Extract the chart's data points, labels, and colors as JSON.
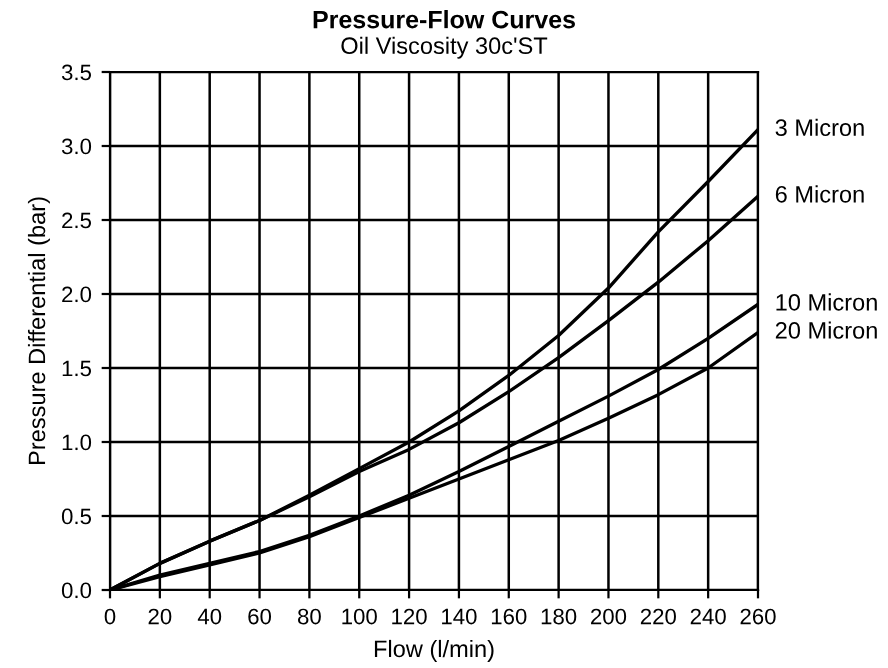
{
  "chart_data": {
    "type": "line",
    "title": "Pressure-Flow Curves",
    "subtitle": "Oil Viscosity 30c'ST",
    "xlabel": "Flow (l/min)",
    "ylabel": "Pressure Differential (bar)",
    "x": [
      0,
      20,
      40,
      60,
      80,
      100,
      120,
      140,
      160,
      180,
      200,
      220,
      240,
      260
    ],
    "series": [
      {
        "name": "3 Micron",
        "color": "#000000",
        "values": [
          0,
          0.18,
          0.33,
          0.47,
          0.64,
          0.82,
          1.0,
          1.21,
          1.45,
          1.72,
          2.04,
          2.42,
          2.76,
          3.11
        ]
      },
      {
        "name": "6 Micron",
        "color": "#000000",
        "values": [
          0,
          0.18,
          0.33,
          0.47,
          0.63,
          0.8,
          0.95,
          1.13,
          1.34,
          1.57,
          1.82,
          2.08,
          2.36,
          2.66
        ]
      },
      {
        "name": "10 Micron",
        "color": "#000000",
        "values": [
          0,
          0.1,
          0.18,
          0.26,
          0.37,
          0.5,
          0.64,
          0.8,
          0.97,
          1.14,
          1.31,
          1.49,
          1.7,
          1.93
        ]
      },
      {
        "name": "20 Micron",
        "color": "#000000",
        "values": [
          0,
          0.09,
          0.17,
          0.25,
          0.36,
          0.49,
          0.62,
          0.75,
          0.88,
          1.01,
          1.16,
          1.32,
          1.5,
          1.74
        ]
      }
    ],
    "xlim": [
      0,
      260
    ],
    "xticks": [
      0,
      20,
      40,
      60,
      80,
      100,
      120,
      140,
      160,
      180,
      200,
      220,
      240,
      260
    ],
    "ylim": [
      0,
      3.5
    ],
    "yticks": [
      {
        "value": 0,
        "label": "0.0"
      },
      {
        "value": 0.5,
        "label": "0.5"
      },
      {
        "value": 1,
        "label": "1.0"
      },
      {
        "value": 1.5,
        "label": "1.5"
      },
      {
        "value": 2,
        "label": "2.0"
      },
      {
        "value": 2.5,
        "label": "2.5"
      },
      {
        "value": 3,
        "label": "3.0"
      },
      {
        "value": 3.5,
        "label": "3.5"
      }
    ],
    "grid": true,
    "legend": false,
    "marker": "none",
    "line_style": "solid"
  }
}
